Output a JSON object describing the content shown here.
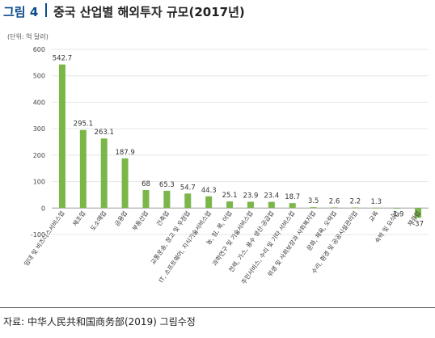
{
  "figure": {
    "number": "그림 4",
    "title": "중국 산업별 해외투자 규모(2017년)",
    "unit_note": "(단위: 억 달러)",
    "source": "자료: 中华人民共和国商务部(2019) 그림수정"
  },
  "colors": {
    "bar": "#7ab648",
    "title_accent": "#0b4a8b",
    "grid": "#e6e6e6",
    "axis": "#999999"
  },
  "chart_data": {
    "type": "bar",
    "title": "중국 산업별 해외투자 규모(2017년)",
    "ylabel": "(단위: 억 달러)",
    "xlabel": "",
    "ylim": [
      -100,
      600
    ],
    "yticks": [
      -100,
      0,
      100,
      200,
      300,
      400,
      500,
      600
    ],
    "grid": true,
    "legend": "none",
    "categories": [
      "임대 및 비즈니스서비스업",
      "제조업",
      "도소매업",
      "금융업",
      "부동산업",
      "건축업",
      "교통운송, 창고 및 우정업",
      "IT, 소프트웨어, 지식기술서비스업",
      "농, 임, 목, 어업",
      "과학연구 및 기술서비스업",
      "전력, 가스, 용수 생산·공급업",
      "주민서비스, 수리 및 기타 서비스업",
      "위생 및 사회보장과 사회복지업",
      "문화, 체육, 오락업",
      "수리, 환경 및 공공시설관리업",
      "교육",
      "숙박 및 요식업",
      "채광업"
    ],
    "values": [
      542.7,
      295.1,
      263.1,
      187.9,
      68,
      65.3,
      54.7,
      44.3,
      25.1,
      23.9,
      23.4,
      18.7,
      3.5,
      2.6,
      2.2,
      1.3,
      -1.9,
      -37
    ],
    "value_labels": [
      "542.7",
      "295.1",
      "263.1",
      "187.9",
      "68",
      "65.3",
      "54.7",
      "44.3",
      "25.1",
      "23.9",
      "23.4",
      "18.7",
      "3.5",
      "2.6",
      "2.2",
      "1.3",
      "-1.9",
      "-37"
    ]
  }
}
